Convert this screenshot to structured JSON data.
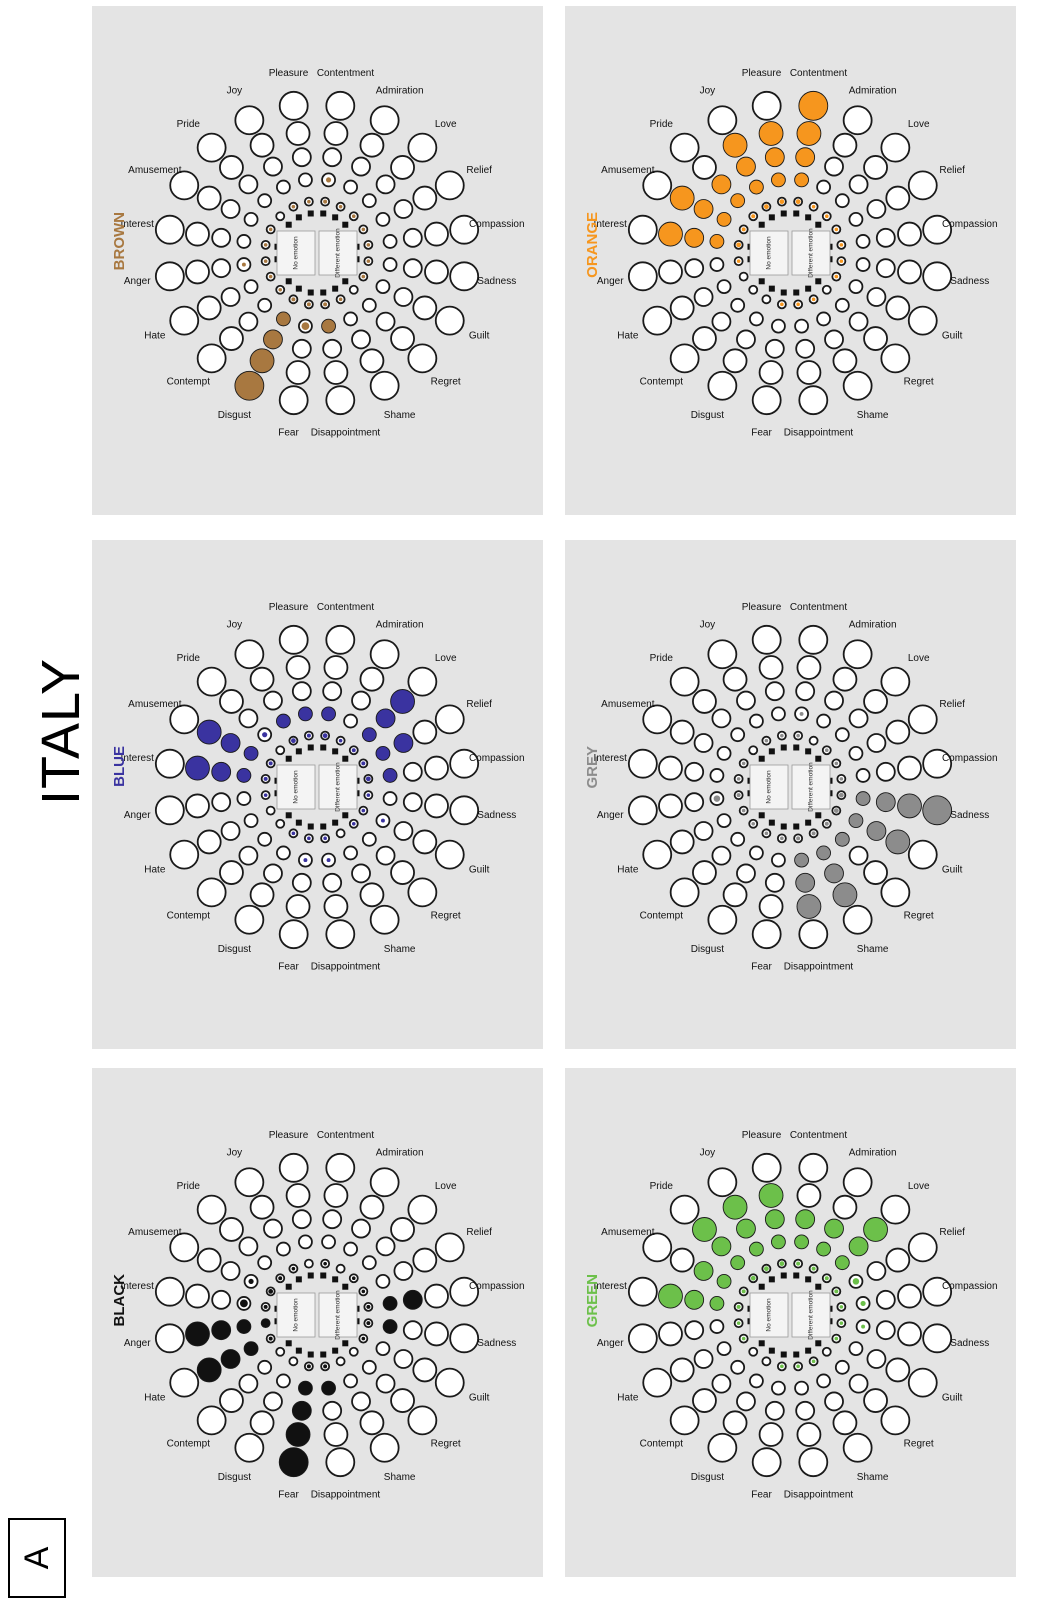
{
  "figure": {
    "page_label": "A",
    "country": "ITALY",
    "center_labels": {
      "no_emotion": "No emotion",
      "different_emotion": "Different emotion"
    },
    "emotions": [
      "Interest",
      "Amusement",
      "Pride",
      "Joy",
      "Pleasure",
      "Contentment",
      "Admiration",
      "Love",
      "Relief",
      "Compassion",
      "Sadness",
      "Guilt",
      "Regret",
      "Shame",
      "Disappointment",
      "Fear",
      "Disgust",
      "Contempt",
      "Hate",
      "Anger"
    ]
  },
  "panels": [
    {
      "name": "BLACK",
      "color": "#111111",
      "intensity": {
        "Anger": [
          1,
          1,
          1,
          1,
          0
        ],
        "Hate": [
          0.5,
          1,
          1,
          1,
          0
        ],
        "Fear": [
          0.5,
          1,
          1,
          1,
          1
        ],
        "Contempt": [
          0,
          0,
          0,
          0,
          0
        ],
        "Disgust": [
          0,
          0,
          0,
          0,
          0
        ],
        "Disappointment": [
          0.5,
          1,
          0,
          0,
          0
        ],
        "Sadness": [
          0.5,
          1,
          0,
          0,
          0
        ],
        "Compassion": [
          0.5,
          1,
          1,
          0,
          0
        ],
        "Interest": [
          0.5,
          0.6,
          0,
          0,
          0
        ],
        "Amusement": [
          0.6,
          0.4,
          0,
          0,
          0
        ],
        "Pride": [
          0.5,
          0,
          0,
          0,
          0
        ],
        "Joy": [
          0.3,
          0,
          0,
          0,
          0
        ],
        "Contentment": [
          0.4,
          0,
          0,
          0,
          0
        ],
        "Love": [
          0.4,
          0,
          0,
          0,
          0
        ],
        "Relief": [
          0.3,
          0,
          0,
          0,
          0
        ],
        "Guilt": [
          0.3,
          0,
          0,
          0,
          0
        ],
        "Regret": [
          0,
          0,
          0,
          0,
          0
        ],
        "Shame": [
          0,
          0,
          0,
          0,
          0
        ],
        "Admiration": [
          0,
          0,
          0,
          0,
          0
        ],
        "Pleasure": [
          0,
          0,
          0,
          0,
          0
        ]
      }
    },
    {
      "name": "BLUE",
      "color": "#3a33a0",
      "intensity": {
        "Interest": [
          0.5,
          1,
          1,
          1,
          0
        ],
        "Amusement": [
          0.5,
          1,
          1,
          1,
          0
        ],
        "Pride": [
          0,
          0.4,
          0,
          0,
          0
        ],
        "Joy": [
          0.6,
          1,
          0,
          0,
          0
        ],
        "Pleasure": [
          0.5,
          1,
          0,
          0,
          0
        ],
        "Contentment": [
          0.6,
          1,
          0,
          0,
          0
        ],
        "Admiration": [
          0.3,
          0,
          0,
          0,
          0
        ],
        "Love": [
          0.5,
          1,
          1,
          1,
          0
        ],
        "Relief": [
          0.5,
          1,
          1,
          0,
          0
        ],
        "Compassion": [
          0.6,
          1,
          0,
          0,
          0
        ],
        "Sadness": [
          0.4,
          0,
          0,
          0,
          0
        ],
        "Guilt": [
          0.3,
          0.3,
          0,
          0,
          0
        ],
        "Regret": [
          0.3,
          0,
          0,
          0,
          0
        ],
        "Shame": [
          0,
          0,
          0,
          0,
          0
        ],
        "Disappointment": [
          0.4,
          0.3,
          0,
          0,
          0
        ],
        "Fear": [
          0.3,
          0.3,
          0,
          0,
          0
        ],
        "Disgust": [
          0.3,
          0,
          0,
          0,
          0
        ],
        "Contempt": [
          0,
          0,
          0,
          0,
          0
        ],
        "Hate": [
          0,
          0,
          0,
          0,
          0
        ],
        "Anger": [
          0.3,
          0,
          0,
          0,
          0
        ]
      }
    },
    {
      "name": "BROWN",
      "color": "#a87840",
      "intensity": {
        "Disgust": [
          0.5,
          1,
          1,
          1,
          1
        ],
        "Fear": [
          0.5,
          0.6,
          0,
          0,
          0
        ],
        "Disappointment": [
          0.5,
          1,
          0,
          0,
          0
        ],
        "Anger": [
          0.3,
          0.3,
          0,
          0,
          0
        ],
        "Hate": [
          0.3,
          0,
          0,
          0,
          0
        ],
        "Contempt": [
          0.3,
          0,
          0,
          0,
          0
        ],
        "Interest": [
          0.4,
          0,
          0,
          0,
          0
        ],
        "Amusement": [
          0.3,
          0,
          0,
          0,
          0
        ],
        "Joy": [
          0.4,
          0,
          0,
          0,
          0
        ],
        "Pleasure": [
          0.4,
          0,
          0,
          0,
          0
        ],
        "Contentment": [
          0.5,
          0.4,
          0,
          0,
          0
        ],
        "Admiration": [
          0.3,
          0,
          0,
          0,
          0
        ],
        "Love": [
          0.3,
          0,
          0,
          0,
          0
        ],
        "Relief": [
          0.4,
          0,
          0,
          0,
          0
        ],
        "Compassion": [
          0.3,
          0,
          0,
          0,
          0
        ],
        "Sadness": [
          0.3,
          0,
          0,
          0,
          0
        ],
        "Guilt": [
          0.3,
          0,
          0,
          0,
          0
        ],
        "Regret": [
          0,
          0,
          0,
          0,
          0
        ],
        "Shame": [
          0.3,
          0,
          0,
          0,
          0
        ],
        "Pride": [
          0,
          0,
          0,
          0,
          0
        ]
      }
    },
    {
      "name": "GREEN",
      "color": "#6cc04a",
      "intensity": {
        "Interest": [
          0.5,
          1,
          1,
          1,
          0
        ],
        "Amusement": [
          0.5,
          1,
          1,
          0,
          0
        ],
        "Pride": [
          0.6,
          1,
          1,
          1,
          0
        ],
        "Joy": [
          0.6,
          1,
          1,
          1,
          0
        ],
        "Pleasure": [
          0.6,
          1,
          1,
          1,
          0
        ],
        "Contentment": [
          0.5,
          1,
          1,
          0,
          0
        ],
        "Admiration": [
          0.5,
          1,
          1,
          0,
          0
        ],
        "Love": [
          0.5,
          1,
          1,
          1,
          0
        ],
        "Relief": [
          0.5,
          0.5,
          0,
          0,
          0
        ],
        "Compassion": [
          0.4,
          0.4,
          0,
          0,
          0
        ],
        "Sadness": [
          0.4,
          0.3,
          0,
          0,
          0
        ],
        "Guilt": [
          0.3,
          0,
          0,
          0,
          0
        ],
        "Regret": [
          0,
          0,
          0,
          0,
          0
        ],
        "Shame": [
          0.3,
          0,
          0,
          0,
          0
        ],
        "Disappointment": [
          0.3,
          0,
          0,
          0,
          0
        ],
        "Fear": [
          0.3,
          0,
          0,
          0,
          0
        ],
        "Disgust": [
          0,
          0,
          0,
          0,
          0
        ],
        "Contempt": [
          0,
          0,
          0,
          0,
          0
        ],
        "Hate": [
          0.3,
          0,
          0,
          0,
          0
        ],
        "Anger": [
          0.4,
          0,
          0,
          0,
          0
        ]
      }
    },
    {
      "name": "GREY",
      "color": "#8c8c8c",
      "intensity": {
        "Sadness": [
          0.6,
          1,
          1,
          1,
          1
        ],
        "Guilt": [
          0.6,
          1,
          1,
          1,
          0
        ],
        "Regret": [
          0.5,
          1,
          0,
          0,
          0
        ],
        "Shame": [
          0.5,
          1,
          1,
          1,
          0
        ],
        "Disappointment": [
          0.5,
          1,
          1,
          1,
          0
        ],
        "Fear": [
          0.3,
          0,
          0,
          0,
          0
        ],
        "Disgust": [
          0.3,
          0,
          0,
          0,
          0
        ],
        "Contempt": [
          0.3,
          0,
          0,
          0,
          0
        ],
        "Hate": [
          0.3,
          0,
          0,
          0,
          0
        ],
        "Anger": [
          0.5,
          0.5,
          0,
          0,
          0
        ],
        "Interest": [
          0.4,
          0,
          0,
          0,
          0
        ],
        "Amusement": [
          0.3,
          0,
          0,
          0,
          0
        ],
        "Joy": [
          0.3,
          0,
          0,
          0,
          0
        ],
        "Pleasure": [
          0.4,
          0,
          0,
          0,
          0
        ],
        "Contentment": [
          0.3,
          0.3,
          0,
          0,
          0
        ],
        "Love": [
          0.4,
          0,
          0,
          0,
          0
        ],
        "Relief": [
          0.4,
          0,
          0,
          0,
          0
        ],
        "Compassion": [
          0.4,
          0,
          0,
          0,
          0
        ],
        "Admiration": [
          0,
          0,
          0,
          0,
          0
        ],
        "Pride": [
          0,
          0,
          0,
          0,
          0
        ]
      }
    },
    {
      "name": "ORANGE",
      "color": "#f6961e",
      "intensity": {
        "Interest": [
          0.6,
          1,
          1,
          1,
          0
        ],
        "Amusement": [
          0.5,
          1,
          1,
          1,
          0
        ],
        "Pride": [
          0.5,
          1,
          1,
          0,
          0
        ],
        "Joy": [
          0.6,
          1,
          1,
          1,
          0
        ],
        "Pleasure": [
          0.6,
          1,
          1,
          1,
          0
        ],
        "Contentment": [
          0.6,
          1,
          1,
          1,
          1
        ],
        "Admiration": [
          0.4,
          0,
          0,
          0,
          0
        ],
        "Love": [
          0.4,
          0,
          0,
          0,
          0
        ],
        "Relief": [
          0.4,
          0,
          0,
          0,
          0
        ],
        "Compassion": [
          0.3,
          0,
          0,
          0,
          0
        ],
        "Sadness": [
          0.3,
          0,
          0,
          0,
          0
        ],
        "Guilt": [
          0.3,
          0,
          0,
          0,
          0
        ],
        "Regret": [
          0,
          0,
          0,
          0,
          0
        ],
        "Shame": [
          0.3,
          0,
          0,
          0,
          0
        ],
        "Disappointment": [
          0.3,
          0,
          0,
          0,
          0
        ],
        "Fear": [
          0.3,
          0,
          0,
          0,
          0
        ],
        "Disgust": [
          0,
          0,
          0,
          0,
          0
        ],
        "Contempt": [
          0,
          0,
          0,
          0,
          0
        ],
        "Hate": [
          0,
          0,
          0,
          0,
          0
        ],
        "Anger": [
          0.4,
          0,
          0,
          0,
          0
        ]
      }
    }
  ]
}
